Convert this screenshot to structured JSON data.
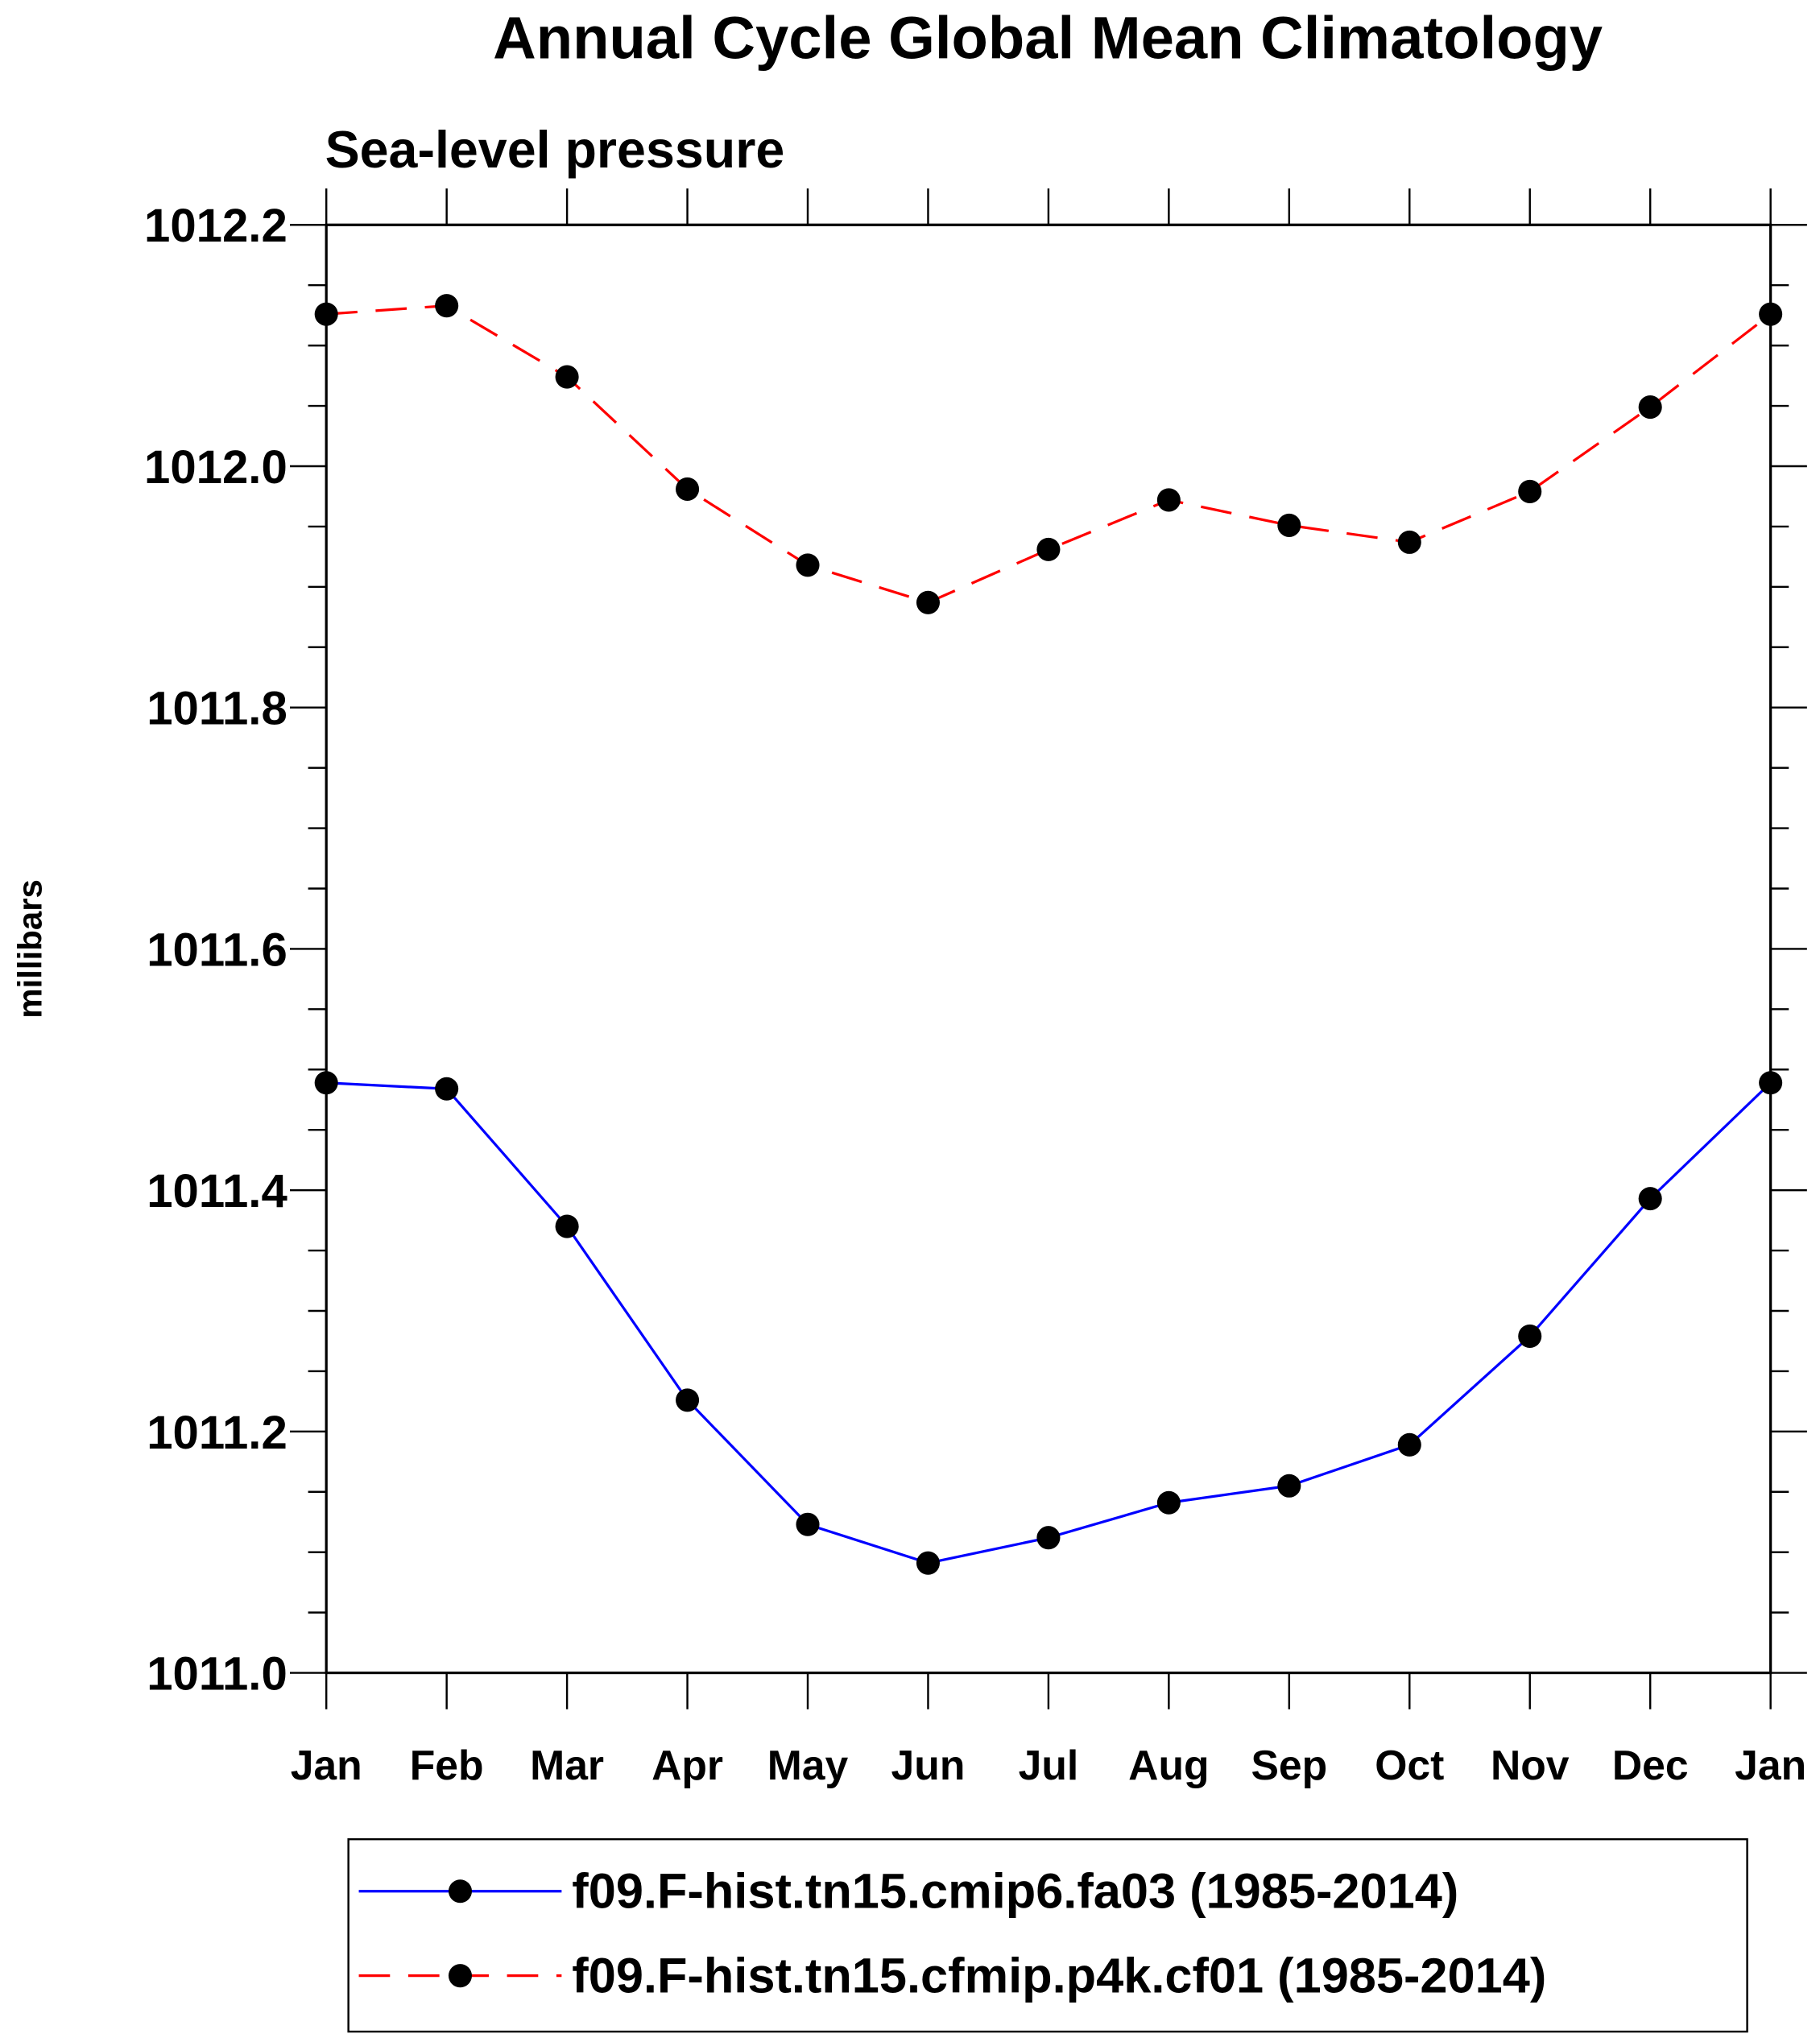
{
  "chart_data": {
    "type": "line",
    "title": "Annual Cycle Global Mean Climatology",
    "subtitle": "Sea-level pressure",
    "xlabel": "",
    "ylabel": "millibars",
    "categories": [
      "Jan",
      "Feb",
      "Mar",
      "Apr",
      "May",
      "Jun",
      "Jul",
      "Aug",
      "Sep",
      "Oct",
      "Nov",
      "Dec",
      "Jan"
    ],
    "ylim": [
      1011.0,
      1012.2
    ],
    "yticks": [
      "1011.0",
      "1011.2",
      "1011.4",
      "1011.6",
      "1011.8",
      "1012.0",
      "1012.2"
    ],
    "grid": false,
    "legend_placement": "bottom",
    "series": [
      {
        "name": "f09.F-hist.tn15.cmip6.fa03 (1985-2014)",
        "color": "#0000ff",
        "dash": "solid",
        "values": [
          1011.489,
          1011.484,
          1011.37,
          1011.226,
          1011.123,
          1011.091,
          1011.112,
          1011.141,
          1011.155,
          1011.189,
          1011.279,
          1011.393,
          1011.489
        ]
      },
      {
        "name": "f09.F-hist.tn15.cfmip.p4k.cf01 (1985-2014)",
        "color": "#ff0000",
        "dash": "dashed",
        "values": [
          1012.126,
          1012.133,
          1012.074,
          1011.981,
          1011.918,
          1011.887,
          1011.931,
          1011.972,
          1011.951,
          1011.937,
          1011.979,
          1012.049,
          1012.126
        ]
      }
    ]
  }
}
